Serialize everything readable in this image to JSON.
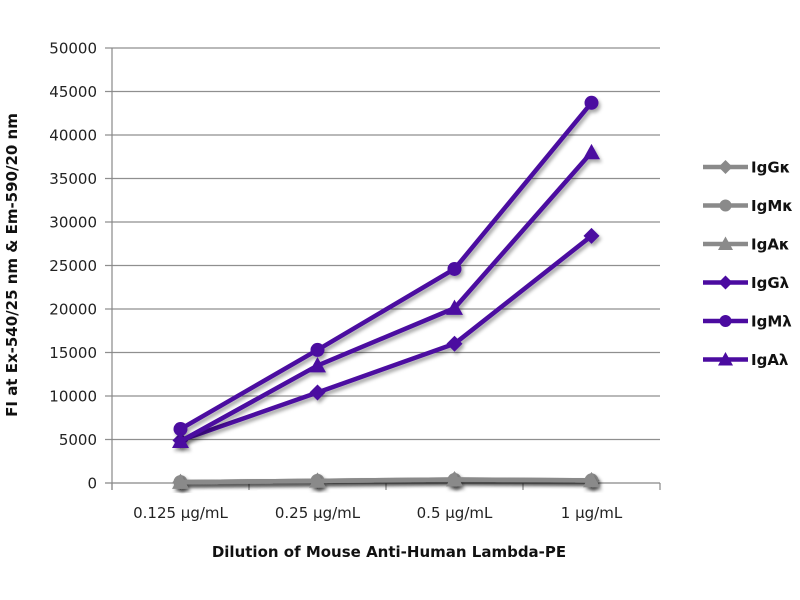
{
  "chart_data": {
    "type": "line",
    "title": "",
    "xlabel": "Dilution of Mouse Anti-Human Lambda-PE",
    "ylabel": "FI at Ex-540/25 nm & Em-590/20 nm",
    "categories": [
      "0.125 µg/mL",
      "0.25 µg/mL",
      "0.5 µg/mL",
      "1 µg/mL"
    ],
    "ylim": [
      0,
      50000
    ],
    "yticks": [
      0,
      5000,
      10000,
      15000,
      20000,
      25000,
      30000,
      35000,
      40000,
      45000,
      50000
    ],
    "grid": true,
    "legend_position": "right",
    "series": [
      {
        "name": "IgGκ",
        "marker": "diamond",
        "color": "#8a8a8a",
        "values": [
          100,
          250,
          400,
          300
        ]
      },
      {
        "name": "IgMκ",
        "marker": "circle",
        "color": "#8a8a8a",
        "values": [
          100,
          250,
          350,
          300
        ]
      },
      {
        "name": "IgAκ",
        "marker": "triangle",
        "color": "#8a8a8a",
        "values": [
          100,
          250,
          400,
          300
        ]
      },
      {
        "name": "IgGλ",
        "marker": "diamond",
        "color": "#4b0ba0",
        "values": [
          4900,
          10400,
          16000,
          28400
        ]
      },
      {
        "name": "IgMλ",
        "marker": "circle",
        "color": "#4b0ba0",
        "values": [
          6200,
          15300,
          24600,
          43700
        ]
      },
      {
        "name": "IgAλ",
        "marker": "triangle",
        "color": "#4b0ba0",
        "values": [
          4800,
          13500,
          20100,
          38000
        ]
      }
    ]
  }
}
